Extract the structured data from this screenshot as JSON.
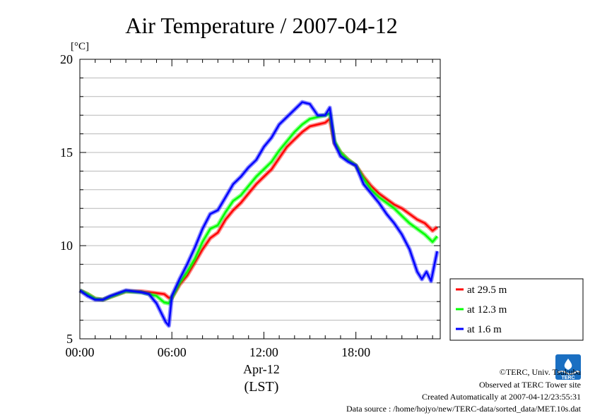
{
  "chart_data": {
    "type": "line",
    "title": "Air Temperature / 2007-04-12",
    "y_unit": "[°C]",
    "xlabel_lines": [
      "Apr-12",
      "(LST)"
    ],
    "x_domain_hours": [
      0,
      23.5
    ],
    "ylim": [
      5,
      20
    ],
    "x_ticks": [
      {
        "hour": 0,
        "label": "00:00"
      },
      {
        "hour": 6,
        "label": "06:00"
      },
      {
        "hour": 12,
        "label": "12:00"
      },
      {
        "hour": 18,
        "label": "18:00"
      }
    ],
    "y_ticks": [
      {
        "value": 5,
        "label": "5"
      },
      {
        "value": 10,
        "label": "10"
      },
      {
        "value": 15,
        "label": "15"
      },
      {
        "value": 20,
        "label": "20"
      }
    ],
    "grid": true,
    "legend_position": "right",
    "series": [
      {
        "name": "at 29.5 m",
        "color": "#ff0000",
        "x": [
          0,
          0.5,
          1,
          1.5,
          2,
          3,
          4,
          5,
          5.5,
          5.8,
          6,
          6.5,
          7,
          7.5,
          8,
          8.5,
          9,
          9.5,
          10,
          10.5,
          11,
          11.5,
          12,
          12.5,
          13,
          13.5,
          14,
          14.5,
          15,
          15.5,
          16,
          16.3,
          16.6,
          17,
          17.5,
          18,
          18.5,
          19,
          19.5,
          20,
          20.5,
          21,
          21.5,
          22,
          22.5,
          23,
          23.3
        ],
        "y": [
          7.6,
          7.4,
          7.15,
          7.1,
          7.25,
          7.55,
          7.55,
          7.45,
          7.4,
          7.2,
          7.2,
          7.9,
          8.4,
          9.1,
          9.8,
          10.4,
          10.7,
          11.4,
          11.9,
          12.3,
          12.8,
          13.3,
          13.7,
          14.1,
          14.7,
          15.3,
          15.7,
          16.1,
          16.4,
          16.5,
          16.6,
          16.8,
          15.5,
          15.0,
          14.6,
          14.3,
          13.7,
          13.2,
          12.8,
          12.5,
          12.2,
          12.0,
          11.7,
          11.4,
          11.2,
          10.8,
          11.0
        ]
      },
      {
        "name": "at 12.3 m",
        "color": "#00ff00",
        "x": [
          0,
          0.5,
          1,
          1.5,
          2,
          3,
          4,
          5,
          5.5,
          5.8,
          6,
          6.5,
          7,
          7.5,
          8,
          8.5,
          9,
          9.5,
          10,
          10.5,
          11,
          11.5,
          12,
          12.5,
          13,
          13.5,
          14,
          14.5,
          15,
          15.5,
          16,
          16.3,
          16.6,
          17,
          17.5,
          18,
          18.5,
          19,
          19.5,
          20,
          20.5,
          21,
          21.5,
          22,
          22.5,
          23,
          23.3
        ],
        "y": [
          7.6,
          7.4,
          7.15,
          7.1,
          7.25,
          7.55,
          7.5,
          7.3,
          6.95,
          6.9,
          7.2,
          8.0,
          8.6,
          9.3,
          10.2,
          10.9,
          11.1,
          11.8,
          12.4,
          12.7,
          13.2,
          13.7,
          14.1,
          14.5,
          15.1,
          15.6,
          16.1,
          16.5,
          16.8,
          16.9,
          17.0,
          17.1,
          15.6,
          15.0,
          14.6,
          14.3,
          13.6,
          13.0,
          12.6,
          12.3,
          12.0,
          11.6,
          11.2,
          10.9,
          10.6,
          10.2,
          10.5
        ]
      },
      {
        "name": "at 1.6 m",
        "color": "#0000ff",
        "x": [
          0,
          0.5,
          1,
          1.5,
          2,
          3,
          4,
          4.5,
          5,
          5.3,
          5.6,
          5.8,
          6,
          6.5,
          7,
          7.5,
          8,
          8.5,
          9,
          9.5,
          10,
          10.5,
          11,
          11.5,
          12,
          12.5,
          13,
          13.5,
          14,
          14.5,
          15,
          15.5,
          16,
          16.3,
          16.6,
          17,
          17.5,
          18,
          18.5,
          19,
          19.5,
          20,
          20.5,
          21,
          21.5,
          22,
          22.3,
          22.6,
          22.9,
          23.3
        ],
        "y": [
          7.6,
          7.3,
          7.1,
          7.1,
          7.3,
          7.6,
          7.5,
          7.4,
          6.9,
          6.4,
          5.9,
          5.7,
          7.3,
          8.2,
          9.0,
          9.9,
          10.9,
          11.7,
          11.9,
          12.6,
          13.3,
          13.7,
          14.2,
          14.6,
          15.3,
          15.8,
          16.5,
          16.9,
          17.3,
          17.7,
          17.6,
          17.0,
          17.0,
          17.4,
          15.5,
          14.8,
          14.5,
          14.3,
          13.3,
          12.8,
          12.3,
          11.7,
          11.2,
          10.6,
          9.8,
          8.6,
          8.2,
          8.6,
          8.1,
          9.7
        ]
      }
    ]
  },
  "footer": {
    "credit": "©TERC, Univ. Tsukuba",
    "site": "Observed at TERC Tower site",
    "created": "Created Automatically at 2007-04-12/23:55:31",
    "source": "Data source : /home/hojyo/new/TERC-data/sorted_data/MET.10s.dat",
    "logo_text": "TERC"
  }
}
